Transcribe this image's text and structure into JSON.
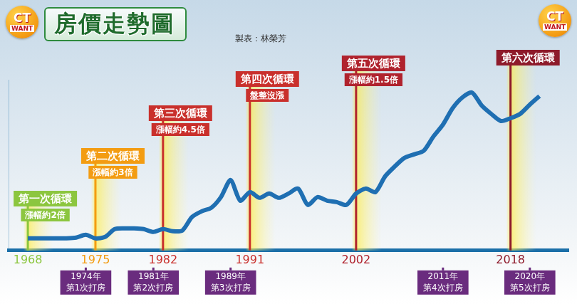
{
  "chart_data": {
    "type": "line",
    "title": "房價走勢圖",
    "subtitle": "製表：林榮芳",
    "logo": [
      "CT",
      "WANT"
    ],
    "x": [
      1968,
      1969,
      1970,
      1971,
      1972,
      1973,
      1974,
      1975,
      1976,
      1977,
      1978,
      1979,
      1980,
      1981,
      1982,
      1983,
      1984,
      1985,
      1986,
      1987,
      1988,
      1989,
      1990,
      1991,
      1992,
      1993,
      1994,
      1995,
      1996,
      1997,
      1998,
      1999,
      2000,
      2001,
      2002,
      2003,
      2004,
      2005,
      2006,
      2007,
      2008,
      2009,
      2010,
      2011,
      2012,
      2013,
      2014,
      2015,
      2016,
      2017,
      2018,
      2019,
      2020,
      2021
    ],
    "values": [
      17,
      17,
      17,
      17,
      17,
      18,
      22,
      17,
      19,
      30,
      31,
      31,
      30,
      26,
      30,
      27,
      28,
      47,
      55,
      60,
      75,
      99,
      70,
      82,
      74,
      80,
      74,
      80,
      87,
      64,
      75,
      70,
      68,
      64,
      80,
      87,
      82,
      104,
      118,
      130,
      135,
      140,
      160,
      177,
      200,
      215,
      222,
      204,
      192,
      182,
      186,
      192,
      205,
      217
    ],
    "color": "#1f6fb2",
    "xlim": [
      1966,
      2024
    ],
    "xticks": [
      1968,
      1975,
      1982,
      1991,
      2002,
      2018
    ],
    "ylim": [
      0,
      240
    ],
    "yticks": [],
    "tick_labels": "x",
    "grid": false,
    "cycles": [
      {
        "year": 1968,
        "label": "第一次循環",
        "note": "漲幅約2倍",
        "color": "#8cc63f"
      },
      {
        "year": 1975,
        "label": "第二次循環",
        "note": "漲幅約3倍",
        "color": "#f39c12"
      },
      {
        "year": 1982,
        "label": "第三次循環",
        "note": "漲幅約4.5倍",
        "color": "#c9302c"
      },
      {
        "year": 1991,
        "label": "第四次循環",
        "note": "盤整沒漲",
        "color": "#c9302c"
      },
      {
        "year": 2002,
        "label": "第五次循環",
        "note": "漲幅約1.5倍",
        "color": "#b0232e"
      },
      {
        "year": 2018,
        "label": "第六次循環",
        "color": "#8e1b2b"
      }
    ],
    "events": [
      {
        "year": 1974,
        "label": "1974年",
        "text": "第1次打房"
      },
      {
        "year": 1981,
        "label": "1981年",
        "text": "第2次打房"
      },
      {
        "year": 1989,
        "label": "1989年",
        "text": "第3次打房"
      },
      {
        "year": 2011,
        "label": "2011年",
        "text": "第4次打房"
      },
      {
        "year": 2020,
        "label": "2020年",
        "text": "第5次打房"
      }
    ]
  }
}
